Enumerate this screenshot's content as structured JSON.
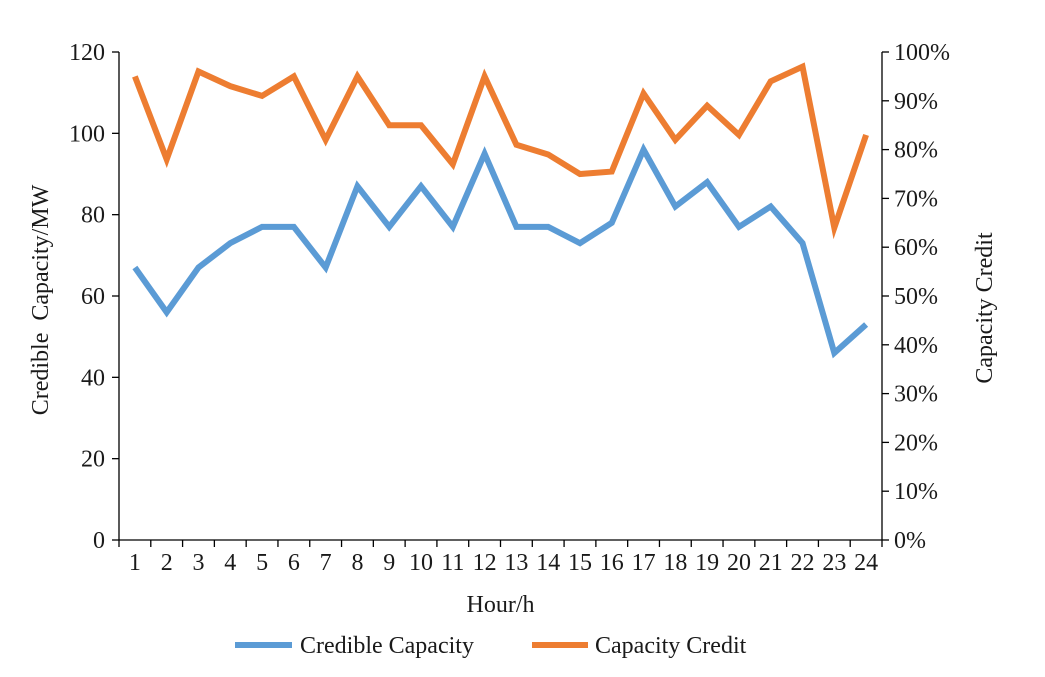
{
  "chart_data": {
    "type": "line",
    "title": "",
    "xlabel": "Hour/h",
    "ylabel": "Credible  Capacity/MW",
    "y2label": "Capacity Credit",
    "categories": [
      "1",
      "2",
      "3",
      "4",
      "5",
      "6",
      "7",
      "8",
      "9",
      "10",
      "11",
      "12",
      "13",
      "14",
      "15",
      "16",
      "17",
      "18",
      "19",
      "20",
      "21",
      "22",
      "23",
      "24"
    ],
    "ylim": [
      0,
      120
    ],
    "y_ticks": [
      0,
      20,
      40,
      60,
      80,
      100,
      120
    ],
    "y_tick_labels": [
      "0",
      "20",
      "40",
      "60",
      "80",
      "100",
      "120"
    ],
    "y2lim": [
      0,
      100
    ],
    "y2_ticks": [
      0,
      10,
      20,
      30,
      40,
      50,
      60,
      70,
      80,
      90,
      100
    ],
    "y2_tick_labels": [
      "0%",
      "10%",
      "20%",
      "30%",
      "40%",
      "50%",
      "60%",
      "70%",
      "80%",
      "90%",
      "100%"
    ],
    "grid": false,
    "legend_position": "bottom",
    "series": [
      {
        "name": "Credible Capacity",
        "axis": "left",
        "color": "#5b9bd5",
        "values": [
          67,
          56,
          67,
          73,
          77,
          77,
          67,
          87,
          77,
          87,
          77,
          95,
          77,
          77,
          73,
          78,
          96,
          82,
          88,
          77,
          82,
          73,
          46,
          53
        ]
      },
      {
        "name": "Capacity Credit",
        "axis": "right",
        "color": "#ed7d31",
        "values": [
          95,
          78,
          96,
          93,
          91,
          95,
          82,
          95,
          85,
          85,
          77,
          95,
          81,
          79,
          75,
          75.5,
          91.5,
          82,
          89,
          83,
          94,
          97,
          64,
          83
        ]
      }
    ]
  }
}
